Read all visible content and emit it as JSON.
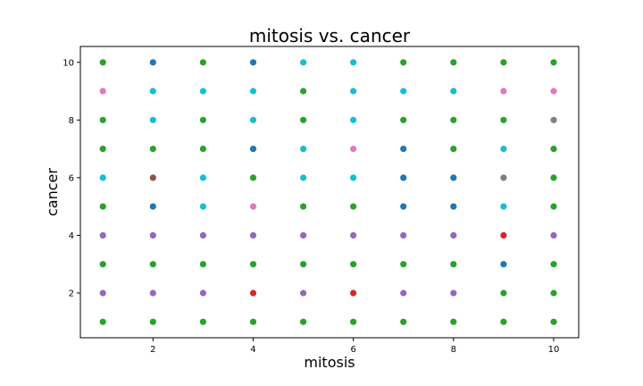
{
  "chart_data": {
    "type": "scatter",
    "title": "mitosis vs. cancer",
    "xlabel": "mitosis",
    "ylabel": "cancer",
    "xlim": [
      0.55,
      10.5
    ],
    "ylim": [
      0.45,
      10.55
    ],
    "xticks": [
      2,
      4,
      6,
      8,
      10
    ],
    "yticks": [
      2,
      4,
      6,
      8,
      10
    ],
    "grid": false,
    "colors": {
      "blue": "#1f77b4",
      "red": "#d62728",
      "green": "#2ca02c",
      "purple": "#9467bd",
      "brown": "#8c564b",
      "pink": "#e377c2",
      "gray": "#7f7f7f",
      "cyan": "#17becf"
    },
    "rows": [
      {
        "y": 10,
        "colors": [
          "green",
          "blue",
          "green",
          "blue",
          "cyan",
          "cyan",
          "green",
          "green",
          "green",
          "green"
        ]
      },
      {
        "y": 9,
        "colors": [
          "pink",
          "cyan",
          "cyan",
          "cyan",
          "green",
          "cyan",
          "cyan",
          "cyan",
          "pink",
          "pink"
        ]
      },
      {
        "y": 8,
        "colors": [
          "green",
          "cyan",
          "green",
          "cyan",
          "green",
          "cyan",
          "green",
          "green",
          "green",
          "gray"
        ]
      },
      {
        "y": 7,
        "colors": [
          "green",
          "green",
          "green",
          "blue",
          "cyan",
          "pink",
          "blue",
          "green",
          "cyan",
          "green"
        ]
      },
      {
        "y": 6,
        "colors": [
          "cyan",
          "brown",
          "cyan",
          "green",
          "cyan",
          "cyan",
          "blue",
          "blue",
          "gray",
          "green"
        ]
      },
      {
        "y": 5,
        "colors": [
          "green",
          "blue",
          "cyan",
          "pink",
          "green",
          "green",
          "blue",
          "blue",
          "cyan",
          "green"
        ]
      },
      {
        "y": 4,
        "colors": [
          "purple",
          "purple",
          "purple",
          "purple",
          "purple",
          "purple",
          "purple",
          "purple",
          "red",
          "purple"
        ]
      },
      {
        "y": 3,
        "colors": [
          "green",
          "green",
          "green",
          "green",
          "green",
          "green",
          "green",
          "green",
          "blue",
          "green"
        ]
      },
      {
        "y": 2,
        "colors": [
          "purple",
          "purple",
          "purple",
          "red",
          "purple",
          "red",
          "purple",
          "purple",
          "green",
          "green"
        ]
      },
      {
        "y": 1,
        "colors": [
          "green",
          "green",
          "green",
          "green",
          "green",
          "green",
          "green",
          "green",
          "green",
          "green"
        ]
      }
    ],
    "x": [
      1,
      2,
      3,
      4,
      5,
      6,
      7,
      8,
      9,
      10
    ]
  }
}
